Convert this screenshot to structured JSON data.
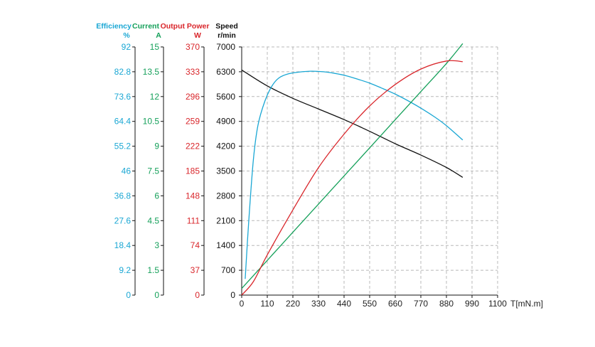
{
  "chart_data": {
    "type": "line",
    "grid": true,
    "x_axis": {
      "label": "T[mN.m]",
      "ticks": [
        "0",
        "110",
        "220",
        "330",
        "440",
        "550",
        "660",
        "770",
        "880",
        "990",
        "1100"
      ],
      "range": [
        0,
        1100
      ]
    },
    "axes": {
      "efficiency": {
        "title": "Efficiency",
        "unit": "%",
        "color": "#1aa7d4",
        "ticks": [
          "0",
          "9.2",
          "18.4",
          "27.6",
          "36.8",
          "46",
          "55.2",
          "64.4",
          "73.6",
          "82.8",
          "92"
        ],
        "range": [
          0,
          92
        ]
      },
      "current": {
        "title": "Current",
        "unit": "A",
        "color": "#15a05a",
        "ticks": [
          "0",
          "1.5",
          "3",
          "4.5",
          "6",
          "7.5",
          "9",
          "10.5",
          "12",
          "13.5",
          "15"
        ],
        "range": [
          0,
          15
        ]
      },
      "power": {
        "title": "Output Power",
        "unit": "W",
        "color": "#d9262b",
        "ticks": [
          "0",
          "37",
          "74",
          "111",
          "148",
          "185",
          "222",
          "259",
          "296",
          "333",
          "370"
        ],
        "range": [
          0,
          370
        ]
      },
      "speed": {
        "title": "Speed",
        "unit": "r/min",
        "color": "#111111",
        "ticks": [
          "0",
          "700",
          "1400",
          "2100",
          "2800",
          "3500",
          "4200",
          "4900",
          "5600",
          "6300",
          "7000"
        ],
        "range": [
          0,
          7000
        ]
      }
    },
    "series": [
      {
        "axis": "speed",
        "color": "#111111",
        "x": [
          0,
          110,
          220,
          330,
          440,
          550,
          660,
          770,
          880,
          950
        ],
        "y": [
          6350,
          5900,
          5550,
          5250,
          4950,
          4620,
          4270,
          3950,
          3600,
          3320
        ]
      },
      {
        "axis": "efficiency",
        "color": "#1aa7d4",
        "x": [
          15,
          30,
          50,
          70,
          100,
          130,
          160,
          200,
          250,
          300,
          350,
          400,
          450,
          500,
          550,
          600,
          660,
          720,
          780,
          830,
          880,
          950
        ],
        "y": [
          6,
          27,
          50,
          63,
          72,
          77.5,
          80.5,
          82,
          82.7,
          83,
          82.8,
          82.2,
          81.3,
          80,
          78.6,
          76.8,
          74.5,
          71.8,
          68.8,
          66,
          62.8,
          57.5
        ]
      },
      {
        "axis": "current",
        "color": "#15a05a",
        "x": [
          0,
          110,
          220,
          330,
          440,
          550,
          660,
          770,
          880,
          950
        ],
        "y": [
          0.4,
          2.1,
          3.8,
          5.5,
          7.2,
          8.9,
          10.6,
          12.3,
          14,
          15.2
        ]
      },
      {
        "axis": "power",
        "color": "#d9262b",
        "x": [
          0,
          50,
          110,
          220,
          330,
          440,
          550,
          660,
          770,
          880,
          950
        ],
        "y": [
          0,
          20,
          60,
          127,
          190,
          240,
          282,
          314,
          337,
          349,
          348
        ]
      }
    ]
  }
}
